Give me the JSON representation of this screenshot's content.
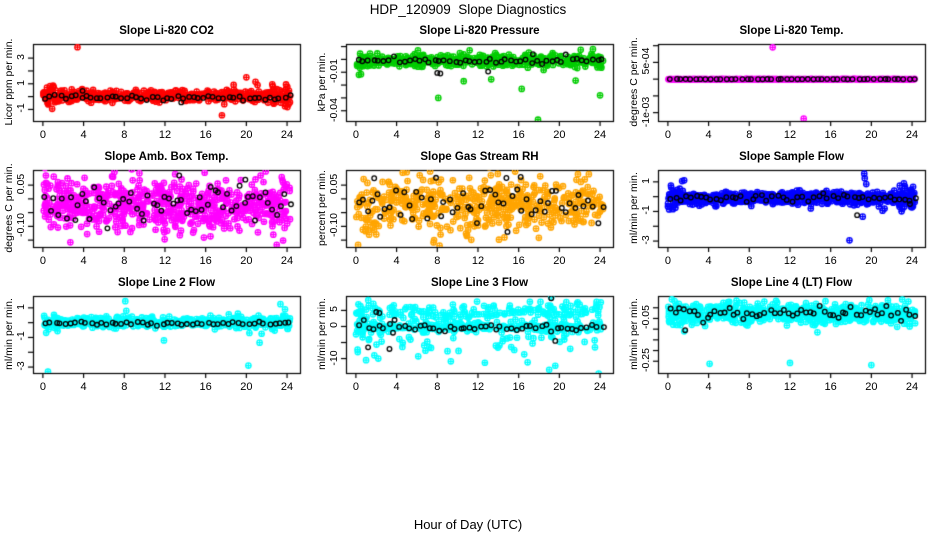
{
  "figure": {
    "title": "HDP_120909  Slope Diagnostics",
    "xlabel": "Hour of Day (UTC)",
    "background": "#FFFFFF",
    "box_color": "#000000",
    "overlay_point_color": "#000000"
  },
  "chart_data": {
    "type": "scatter",
    "grid": [
      3,
      3
    ],
    "x": {
      "range": [
        0,
        24.3
      ],
      "ticks": [
        0,
        4,
        8,
        12,
        16,
        20,
        24
      ],
      "tick_labels": [
        "0",
        "4",
        "8",
        "12",
        "16",
        "20",
        "24"
      ],
      "label": "Hour of Day (UTC)"
    },
    "panels": [
      {
        "id": "li820-co2",
        "title": "Slope Li-820 CO2",
        "ylabel": "Licor ppm per min.",
        "color": "#FF0000",
        "ylim": [
          -1.9,
          4.1
        ],
        "yticks": [
          {
            "v": 3,
            "label": "3"
          },
          {
            "v": 2,
            "label": ""
          },
          {
            "v": 1,
            "label": "1"
          },
          {
            "v": 0,
            "label": ""
          },
          {
            "v": -1,
            "label": "-1"
          }
        ],
        "model": {
          "components": [
            {
              "n": 520,
              "center": 0.05,
              "sd": 0.22
            }
          ],
          "edge_sd_mult": 2.0
        },
        "black_model": {
          "n": 49,
          "center": -0.08,
          "sd": 0.1
        },
        "outliers": [
          [
            3.4,
            3.85
          ],
          [
            20.0,
            1.5
          ],
          [
            20.9,
            1.15
          ],
          [
            21.1,
            0.9
          ],
          [
            17.6,
            -1.45
          ],
          [
            23.9,
            0.95
          ],
          [
            23.8,
            -0.75
          ],
          [
            1.0,
            0.85
          ],
          [
            22.6,
            0.8
          ],
          [
            0.4,
            0.7
          ]
        ],
        "black_outliers": [
          [
            13.6,
            -0.45
          ],
          [
            3.9,
            0.45
          ]
        ]
      },
      {
        "id": "li820-pressure",
        "title": "Slope Li-820 Pressure",
        "ylabel": "kPa per min.",
        "color": "#00CD00",
        "ylim": [
          -0.048,
          0.012
        ],
        "yticks": [
          {
            "v": 0.01,
            "label": ""
          },
          {
            "v": 0.0,
            "label": ""
          },
          {
            "v": -0.01,
            "label": "-0.01"
          },
          {
            "v": -0.02,
            "label": ""
          },
          {
            "v": -0.03,
            "label": ""
          },
          {
            "v": -0.04,
            "label": "-0.04"
          }
        ],
        "model": {
          "components": [
            {
              "n": 430,
              "center": -0.001,
              "sd": 0.0023
            }
          ],
          "edge_sd_mult": 1.2
        },
        "black_model": {
          "n": 49,
          "center": -0.001,
          "sd": 0.0012
        },
        "outliers": [
          [
            8.1,
            -0.03
          ],
          [
            17.9,
            -0.047
          ],
          [
            16.3,
            -0.023
          ],
          [
            24.0,
            -0.028
          ],
          [
            10.6,
            -0.017
          ],
          [
            13.3,
            -0.0155
          ],
          [
            21.6,
            -0.0165
          ],
          [
            0.3,
            -0.012
          ],
          [
            0.5,
            -0.0115
          ],
          [
            6.1,
            0.007
          ],
          [
            23.3,
            0.008
          ],
          [
            22.1,
            0.0075
          ]
        ],
        "black_outliers": [
          [
            8.0,
            -0.0105
          ],
          [
            8.3,
            -0.011
          ],
          [
            13.0,
            -0.0095
          ],
          [
            17.4,
            0.004
          ]
        ]
      },
      {
        "id": "li820-temp",
        "title": "Slope Li-820 Temp.",
        "ylabel": "degrees C per min.",
        "color": "#FF00FF",
        "ylim": [
          -0.00125,
          0.00105
        ],
        "yticks": [
          {
            "v": 0.001,
            "label": ""
          },
          {
            "v": 0.0005,
            "label": "5e-04"
          },
          {
            "v": 0,
            "label": ""
          },
          {
            "v": -0.0005,
            "label": ""
          },
          {
            "v": -0.001,
            "label": "-1e-03"
          }
        ],
        "model": {
          "components": [
            {
              "n": 300,
              "center": 0,
              "sd": 4e-06,
              "even_x": true
            }
          ],
          "edge_sd_mult": 1.0
        },
        "black_model": {
          "n": 49,
          "center": 0,
          "sd": 2e-06
        },
        "outliers": [
          [
            10.3,
            0.00095
          ],
          [
            13.35,
            -0.00118
          ]
        ],
        "black_outliers": []
      },
      {
        "id": "amb-box-temp",
        "title": "Slope Amb. Box Temp.",
        "ylabel": "degrees C per min.",
        "color": "#FF00FF",
        "ylim": [
          -0.175,
          0.105
        ],
        "yticks": [
          {
            "v": 0.05,
            "label": "0.05"
          },
          {
            "v": 0,
            "label": ""
          },
          {
            "v": -0.05,
            "label": ""
          },
          {
            "v": -0.1,
            "label": "-0.10"
          },
          {
            "v": -0.15,
            "label": ""
          }
        ],
        "model": {
          "components": [
            {
              "n": 620,
              "center": -0.02,
              "sd": 0.045
            }
          ],
          "edge_sd_mult": 1.1
        },
        "black_model": {
          "n": 60,
          "center": -0.02,
          "sd": 0.03
        },
        "outliers": [
          [
            2.7,
            -0.158
          ],
          [
            4.35,
            -0.128
          ],
          [
            8.6,
            -0.12
          ],
          [
            15.9,
            0.095
          ],
          [
            21.9,
            0.1
          ],
          [
            21.4,
            0.085
          ],
          [
            13.0,
            0.09
          ],
          [
            6.9,
            0.08
          ]
        ],
        "black_outliers": [
          [
            13.4,
            0.085
          ],
          [
            19.9,
            0.07
          ]
        ]
      },
      {
        "id": "gas-stream-rh",
        "title": "Slope Gas Stream RH",
        "ylabel": "percent per min.",
        "color": "#FFA500",
        "ylim": [
          -0.175,
          0.105
        ],
        "yticks": [
          {
            "v": 0.05,
            "label": "0.05"
          },
          {
            "v": 0,
            "label": ""
          },
          {
            "v": -0.05,
            "label": ""
          },
          {
            "v": -0.1,
            "label": "-0.10"
          },
          {
            "v": -0.15,
            "label": ""
          }
        ],
        "model": {
          "components": [
            {
              "n": 300,
              "center": -0.02,
              "sd": 0.04
            },
            {
              "n": 200,
              "center": -0.025,
              "sd": 0.065
            }
          ],
          "edge_sd_mult": 1.0
        },
        "black_model": {
          "n": 55,
          "center": -0.015,
          "sd": 0.035
        },
        "outliers": [
          [
            4.6,
            0.095
          ],
          [
            7.3,
            0.1
          ],
          [
            14.6,
            -0.14
          ],
          [
            10.9,
            -0.135
          ],
          [
            22.9,
            0.09
          ],
          [
            1.3,
            -0.13
          ]
        ],
        "black_outliers": [
          [
            1.8,
            0.075
          ],
          [
            16.2,
            0.08
          ],
          [
            14.9,
            -0.12
          ]
        ]
      },
      {
        "id": "sample-flow",
        "title": "Slope Sample Flow",
        "ylabel": "ml/min per min.",
        "color": "#0000FF",
        "ylim": [
          -3.4,
          1.8
        ],
        "yticks": [
          {
            "v": 1,
            "label": "1"
          },
          {
            "v": 0,
            "label": ""
          },
          {
            "v": -1,
            "label": "-1"
          },
          {
            "v": -2,
            "label": ""
          },
          {
            "v": -3,
            "label": "-3"
          }
        ],
        "model": {
          "components": [
            {
              "n": 700,
              "center": -0.1,
              "sd": 0.2
            }
          ],
          "edge_sd_mult": 2.0
        },
        "black_model": {
          "n": 49,
          "center": -0.12,
          "sd": 0.12
        },
        "outliers": [
          [
            1.4,
            1.05
          ],
          [
            1.6,
            1.1
          ],
          [
            0.5,
            -0.85
          ],
          [
            19.3,
            1.55
          ],
          [
            19.35,
            1.25
          ],
          [
            19.5,
            0.85
          ],
          [
            17.85,
            -2.95
          ],
          [
            19.15,
            -1.35
          ],
          [
            21.1,
            -0.95
          ],
          [
            23.2,
            0.9
          ],
          [
            23.3,
            0.7
          ],
          [
            23.9,
            -0.7
          ],
          [
            0.3,
            0.75
          ],
          [
            21.3,
            -0.8
          ]
        ],
        "black_outliers": [
          [
            18.6,
            -1.25
          ],
          [
            23.8,
            -0.5
          ]
        ]
      },
      {
        "id": "line2-flow",
        "title": "Slope Line 2 Flow",
        "ylabel": "ml/min per min.",
        "color": "#00FFFF",
        "ylim": [
          -3.4,
          1.8
        ],
        "yticks": [
          {
            "v": 1,
            "label": "1"
          },
          {
            "v": 0,
            "label": ""
          },
          {
            "v": -1,
            "label": "-1"
          },
          {
            "v": -2,
            "label": ""
          },
          {
            "v": -3,
            "label": "-3"
          }
        ],
        "model": {
          "components": [
            {
              "n": 520,
              "center": 0.05,
              "sd": 0.17
            }
          ],
          "edge_sd_mult": 1.6
        },
        "black_model": {
          "n": 49,
          "center": -0.05,
          "sd": 0.06
        },
        "outliers": [
          [
            0.5,
            -3.3
          ],
          [
            8.1,
            1.45
          ],
          [
            8.2,
            0.8
          ],
          [
            11.9,
            -1.2
          ],
          [
            20.2,
            -2.9
          ],
          [
            20.85,
            2.25
          ],
          [
            20.95,
            2.05
          ],
          [
            21.3,
            -1.35
          ],
          [
            21.5,
            -0.75
          ],
          [
            23.35,
            1.25
          ],
          [
            23.8,
            0.9
          ],
          [
            20.3,
            -0.7
          ]
        ],
        "black_outliers": []
      },
      {
        "id": "line3-flow",
        "title": "Slope Line 3 Flow",
        "ylabel": "ml/min per min.",
        "color": "#00FFFF",
        "ylim": [
          -14.5,
          9.5
        ],
        "yticks": [
          {
            "v": 5,
            "label": "5"
          },
          {
            "v": 0,
            "label": "0"
          },
          {
            "v": -5,
            "label": ""
          },
          {
            "v": -10,
            "label": "-10"
          }
        ],
        "model": {
          "components": [
            {
              "n": 260,
              "center": -0.2,
              "sd": 0.7
            },
            {
              "n": 180,
              "center": 4.5,
              "sd": 1.4
            },
            {
              "n": 60,
              "center": -5,
              "sd": 2.8
            }
          ],
          "edge_sd_mult": 1.3
        },
        "black_model": {
          "n": 49,
          "center": -0.3,
          "sd": 0.7
        },
        "outliers": [
          [
            19.0,
            -13.5
          ],
          [
            19.1,
            6.5
          ],
          [
            21.8,
            7.5
          ],
          [
            22.0,
            6.8
          ],
          [
            1.0,
            -10.5
          ],
          [
            2.2,
            -10.0
          ],
          [
            19.2,
            9.0
          ],
          [
            23.5,
            -6.5
          ]
        ],
        "black_outliers": [
          [
            2.0,
            4.5
          ],
          [
            2.3,
            4.2
          ],
          [
            3.3,
            -7.0
          ],
          [
            1.2,
            -6.5
          ],
          [
            19.2,
            8.8
          ],
          [
            3.8,
            2.0
          ],
          [
            19.6,
            -4.5
          ]
        ]
      },
      {
        "id": "line4-lt-flow",
        "title": "Slope Line 4 (LT) Flow",
        "ylabel": "ml/min per min.",
        "color": "#00FFFF",
        "ylim": [
          -0.305,
          0.055
        ],
        "yticks": [
          {
            "v": 0,
            "label": ""
          },
          {
            "v": -0.05,
            "label": "-0.05"
          },
          {
            "v": -0.1,
            "label": ""
          },
          {
            "v": -0.15,
            "label": ""
          },
          {
            "v": -0.2,
            "label": ""
          },
          {
            "v": -0.25,
            "label": "-0.25"
          }
        ],
        "model": {
          "components": [
            {
              "n": 650,
              "center": -0.028,
              "sd": 0.022
            }
          ],
          "edge_sd_mult": 1.2
        },
        "black_model": {
          "n": 55,
          "center": -0.025,
          "sd": 0.015
        },
        "outliers": [
          [
            4.1,
            -0.262
          ],
          [
            12.0,
            -0.258
          ],
          [
            20.0,
            -0.268
          ],
          [
            1.6,
            -0.11
          ],
          [
            14.7,
            -0.115
          ]
        ],
        "black_outliers": [
          [
            1.7,
            -0.105
          ]
        ]
      }
    ]
  }
}
